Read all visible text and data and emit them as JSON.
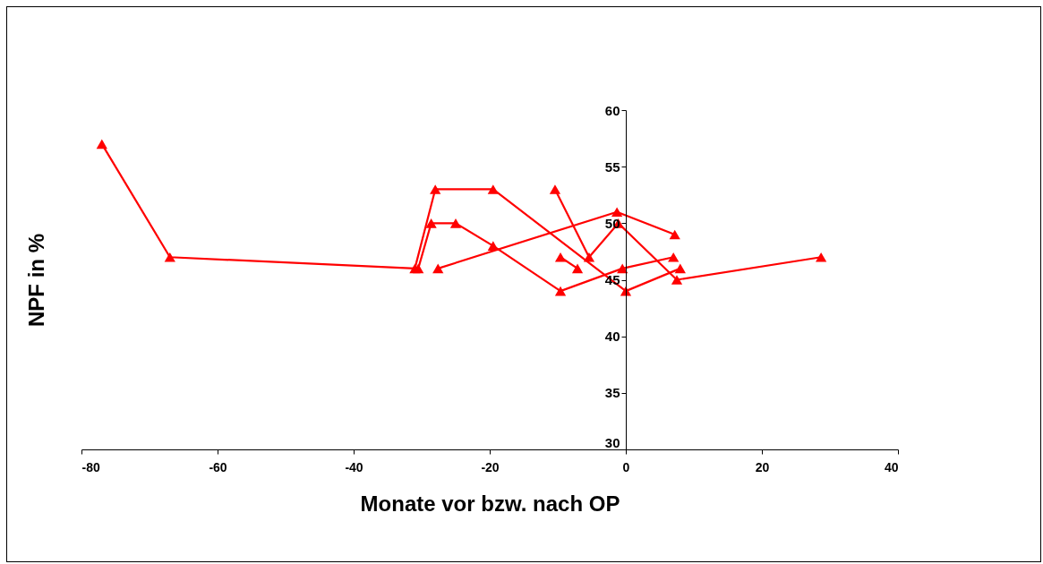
{
  "chart_data": {
    "type": "line",
    "xlabel": "Monate vor bzw. nach OP",
    "ylabel": "NPF in %",
    "xlim": [
      -80,
      40
    ],
    "xticks": [
      -80,
      -60,
      -40,
      -20,
      0,
      20,
      40
    ],
    "ylim": [
      30,
      60
    ],
    "yticks": [
      30,
      35,
      40,
      45,
      50,
      55,
      60
    ],
    "grid": false,
    "legend": false,
    "marker": "triangle",
    "line_style": "solid",
    "series": [
      {
        "color": "#ff0000",
        "x": [
          -77,
          -67,
          -31,
          -28,
          -19.5,
          0,
          8
        ],
        "values": [
          57,
          47,
          46,
          53,
          53,
          44,
          46
        ]
      },
      {
        "color": "#ff0000",
        "x": [
          -30.5,
          -28.6,
          -25,
          -19.5,
          -9.6,
          -0.5,
          7
        ],
        "values": [
          46,
          50,
          50,
          48,
          44,
          46,
          47
        ]
      },
      {
        "color": "#ff0000",
        "x": [
          -27.6,
          -1.3,
          7.2
        ],
        "values": [
          46,
          51,
          49
        ]
      },
      {
        "color": "#ff0000",
        "x": [
          -10.4,
          -5.4,
          -1.1,
          7.5,
          28.7
        ],
        "values": [
          53,
          47,
          50,
          45,
          47
        ]
      },
      {
        "color": "#ff0000",
        "x": [
          -9.6,
          -7.1
        ],
        "values": [
          47,
          46
        ]
      }
    ]
  }
}
